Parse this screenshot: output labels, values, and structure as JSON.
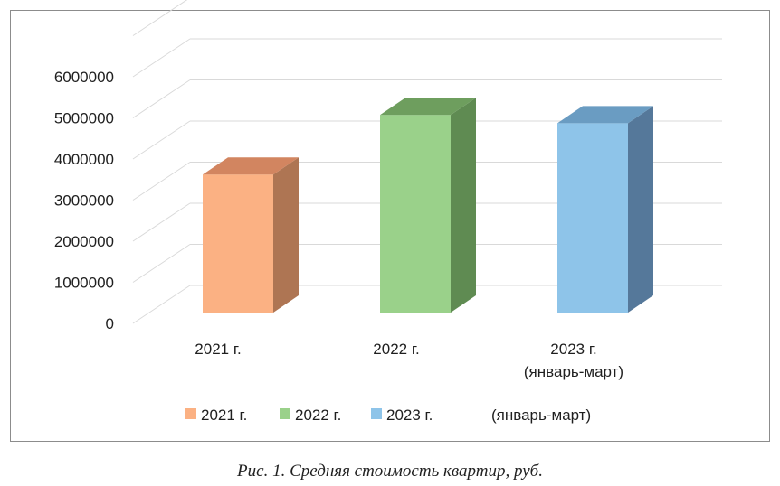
{
  "caption": "Рис. 1. Средняя стоимость квартир, руб.",
  "chart_data": {
    "type": "bar",
    "style": "3d-column",
    "title": "",
    "xlabel": "",
    "ylabel": "",
    "ylim": [
      0,
      6000000
    ],
    "y_ticks": [
      "0",
      "1000000",
      "2000000",
      "3000000",
      "4000000",
      "5000000",
      "6000000"
    ],
    "grid": true,
    "legend_position": "bottom",
    "categories": [
      {
        "line1": "2021 г.",
        "line2": ""
      },
      {
        "line1": "2022 г.",
        "line2": ""
      },
      {
        "line1": "2023 г.",
        "line2": "(январь-март)"
      }
    ],
    "values": [
      3600000,
      5050000,
      4850000
    ],
    "colors": [
      {
        "front": "#FBB183",
        "side": "#AE7553",
        "top": "#D28560"
      },
      {
        "front": "#9AD18A",
        "side": "#5F8B52",
        "top": "#6E9E5E"
      },
      {
        "front": "#8EC4E9",
        "side": "#55789A",
        "top": "#6A9CC2"
      }
    ],
    "legend": [
      {
        "label": "2021 г.",
        "color": "#FBB183"
      },
      {
        "label": "2022 г.",
        "color": "#9AD18A"
      },
      {
        "label": "2023 г.",
        "color": "#8EC4E9"
      }
    ],
    "legend_suffix": "(январь-март)"
  }
}
